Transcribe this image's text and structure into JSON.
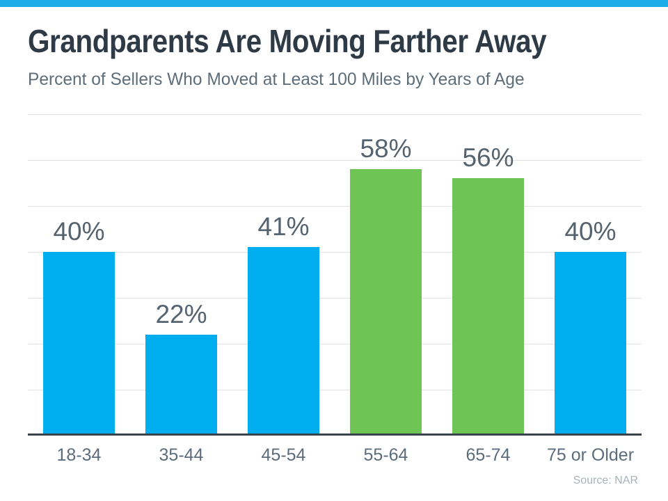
{
  "header": {
    "title": "Grandparents Are Moving Farther Away",
    "subtitle": "Percent of Sellers Who Moved at Least 100 Miles by Years of Age"
  },
  "footer": {
    "source": "Source: NAR"
  },
  "colors": {
    "accent_banner": "#1FADEA",
    "bar_blue": "#00AEEF",
    "bar_green": "#6EC455",
    "title_text": "#2E3A46",
    "subtitle_text": "#5D6E7A",
    "value_label_text": "#54636F",
    "axis_label_text": "#5C6C7C",
    "gridline": "#E3E3E3",
    "axis_line": "#37424B",
    "source_text": "#A8B2BB"
  },
  "chart_data": {
    "type": "bar",
    "title": "Grandparents Are Moving Farther Away",
    "subtitle": "Percent of Sellers Who Moved at Least 100 Miles by Years of Age",
    "categories": [
      "18-34",
      "35-44",
      "45-54",
      "55-64",
      "65-74",
      "75 or Older"
    ],
    "values": [
      40,
      22,
      41,
      58,
      56,
      40
    ],
    "value_labels": [
      "40%",
      "22%",
      "41%",
      "58%",
      "56%",
      "40%"
    ],
    "bar_colors": [
      "blue",
      "blue",
      "blue",
      "green",
      "green",
      "blue"
    ],
    "xlabel": "",
    "ylabel": "",
    "ylim": [
      0,
      70
    ],
    "gridline_step": 10,
    "grid": "horizontal-only",
    "legend": "none",
    "y_tick_labels_shown": false,
    "source": "Source: NAR"
  }
}
